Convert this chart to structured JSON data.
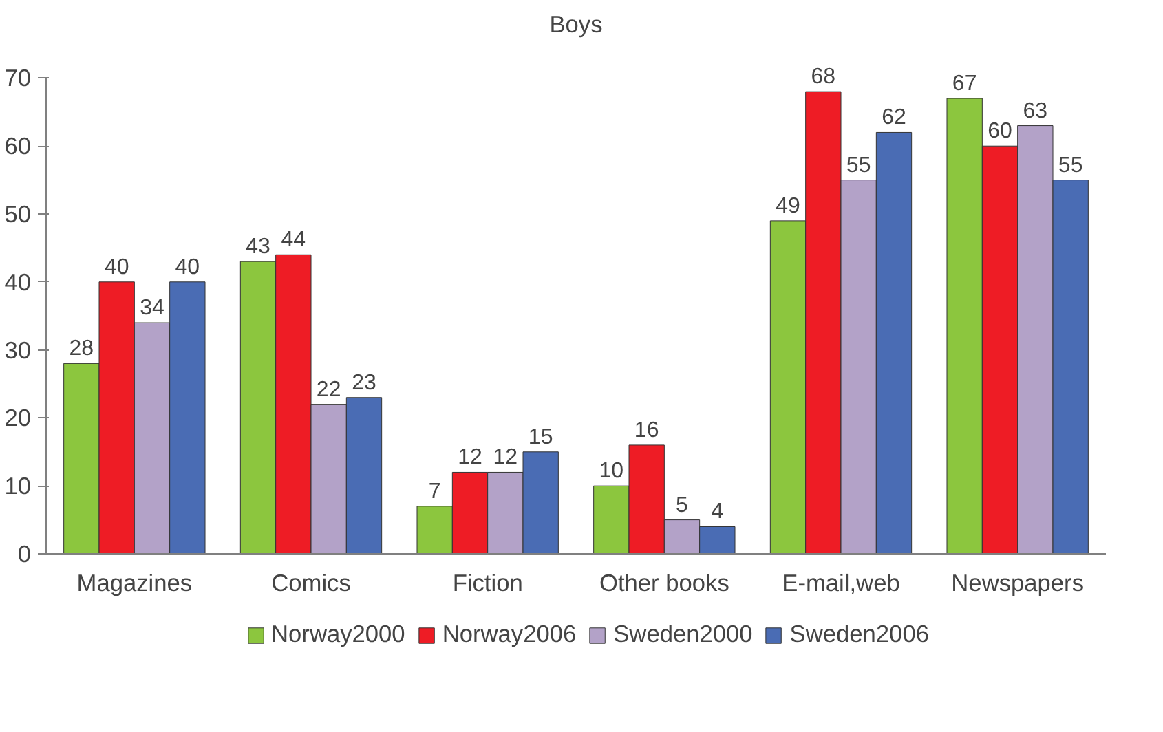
{
  "chart_data": {
    "type": "bar",
    "title": "Boys",
    "categories": [
      "Magazines",
      "Comics",
      "Fiction",
      "Other books",
      "E-mail,web",
      "Newspapers"
    ],
    "series": [
      {
        "name": "Norway2000",
        "color": "#8cc63e",
        "values": [
          28,
          43,
          7,
          10,
          49,
          67
        ]
      },
      {
        "name": "Norway2006",
        "color": "#ee1c25",
        "values": [
          40,
          44,
          12,
          16,
          68,
          60
        ]
      },
      {
        "name": "Sweden2000",
        "color": "#b3a2c8",
        "values": [
          34,
          22,
          12,
          5,
          55,
          63
        ]
      },
      {
        "name": "Sweden2006",
        "color": "#4a6cb4",
        "values": [
          40,
          23,
          15,
          4,
          62,
          55
        ]
      }
    ],
    "ylim": [
      0,
      70
    ],
    "yticks": [
      0,
      10,
      20,
      30,
      40,
      50,
      60,
      70
    ],
    "data_labels": true,
    "grid": false,
    "legend": "bottom"
  }
}
